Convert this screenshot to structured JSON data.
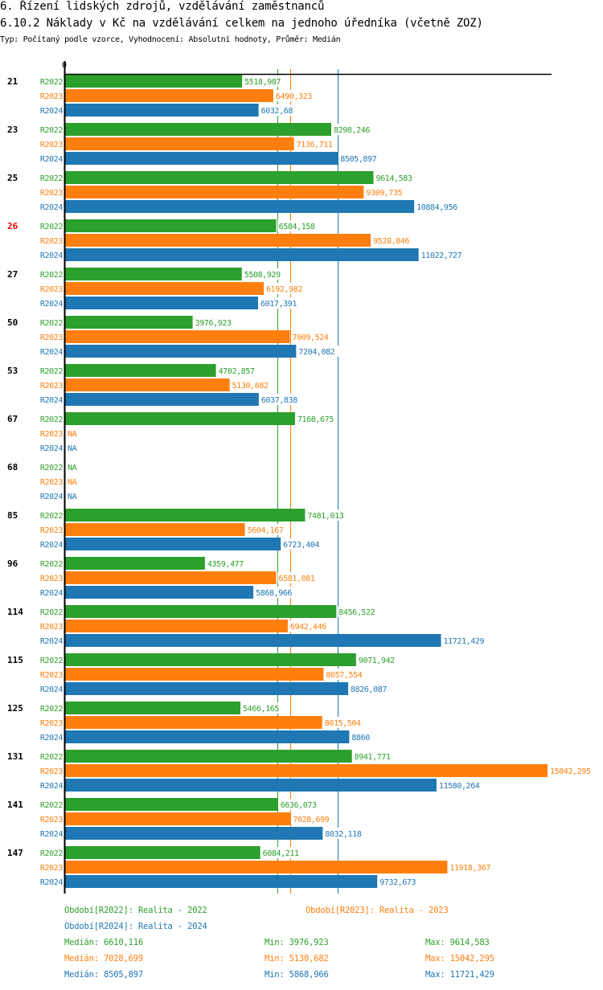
{
  "header": {
    "title": "6. Řízení lidských zdrojů, vzdělávání zaměstnanců",
    "subtitle": "6.10.2 Náklady v Kč na vzdělávání celkem na jednoho úředníka (včetně ZOZ)",
    "meta": "Typ: Počítaný podle vzorce, Vyhodnocení: Absolutní hodnoty, Průměr: Medián"
  },
  "colors": {
    "R2022": "#2ca02c",
    "R2023": "#ff7f0e",
    "R2024": "#1f77b4",
    "highlight": "#ff0000",
    "axis": "#000000"
  },
  "chart_data": {
    "type": "bar",
    "orientation": "horizontal",
    "axis_zero_label": "0",
    "xlim": [
      0,
      15042.295
    ],
    "series_names": [
      "R2022",
      "R2023",
      "R2024"
    ],
    "highlighted_category": "26",
    "categories": [
      "21",
      "23",
      "25",
      "26",
      "27",
      "50",
      "53",
      "67",
      "68",
      "85",
      "96",
      "114",
      "115",
      "125",
      "131",
      "141",
      "147"
    ],
    "series": [
      {
        "name": "R2022",
        "values": [
          5518.987,
          8298.246,
          9614.583,
          6584.158,
          5508.929,
          3976.923,
          4702.857,
          7168.675,
          null,
          7481.013,
          4359.477,
          8456.522,
          9071.942,
          5466.165,
          8941.771,
          6636.073,
          6084.211
        ],
        "labels": [
          "5518,987",
          "8298,246",
          "9614,583",
          "6584,158",
          "5508,929",
          "3976,923",
          "4702,857",
          "7168,675",
          "NA",
          "7481,013",
          "4359,477",
          "8456,522",
          "9071,942",
          "5466,165",
          "8941,771",
          "6636,073",
          "6084,211"
        ]
      },
      {
        "name": "R2023",
        "values": [
          6490.323,
          7136.711,
          9309.735,
          9528.846,
          6192.982,
          7009.524,
          5130.682,
          null,
          null,
          5604.167,
          6581.081,
          6942.446,
          8057.554,
          8015.504,
          15042.295,
          7028.699,
          11918.367
        ],
        "labels": [
          "6490,323",
          "7136,711",
          "9309,735",
          "9528,846",
          "6192,982",
          "7009,524",
          "5130,682",
          "NA",
          "NA",
          "5604,167",
          "6581,081",
          "6942,446",
          "8057,554",
          "8015,504",
          "15042,295",
          "7028,699",
          "11918,367"
        ]
      },
      {
        "name": "R2024",
        "values": [
          6032.68,
          8505.897,
          10884.956,
          11022.727,
          6017.391,
          7204.082,
          6037.838,
          null,
          null,
          6723.404,
          5868.966,
          11721.429,
          8826.087,
          8860,
          11580.264,
          8032.118,
          9732.673
        ],
        "labels": [
          "6032,68",
          "8505,897",
          "10884,956",
          "11022,727",
          "6017,391",
          "7204,082",
          "6037,838",
          "NA",
          "NA",
          "6723,404",
          "5868,966",
          "11721,429",
          "8826,087",
          "8860",
          "11580,264",
          "8032,118",
          "9732,673"
        ]
      }
    ],
    "medians": {
      "R2022": 6610.116,
      "R2023": 7028.699,
      "R2024": 8505.897
    },
    "legend": [
      {
        "series": "R2022",
        "text": "Období[R2022]: Realita - 2022"
      },
      {
        "series": "R2023",
        "text": "Období[R2023]: Realita - 2023"
      },
      {
        "series": "R2024",
        "text": "Období[R2024]: Realita - 2024"
      }
    ],
    "stats": [
      {
        "series": "R2022",
        "median": "Medián: 6610,116",
        "min": "Min: 3976,923",
        "max": "Max: 9614,583"
      },
      {
        "series": "R2023",
        "median": "Medián: 7028,699",
        "min": "Min: 5130,682",
        "max": "Max: 15042,295"
      },
      {
        "series": "R2024",
        "median": "Medián: 8505,897",
        "min": "Min: 5868,966",
        "max": "Max: 11721,429"
      }
    ],
    "legend_position": "bottom"
  }
}
